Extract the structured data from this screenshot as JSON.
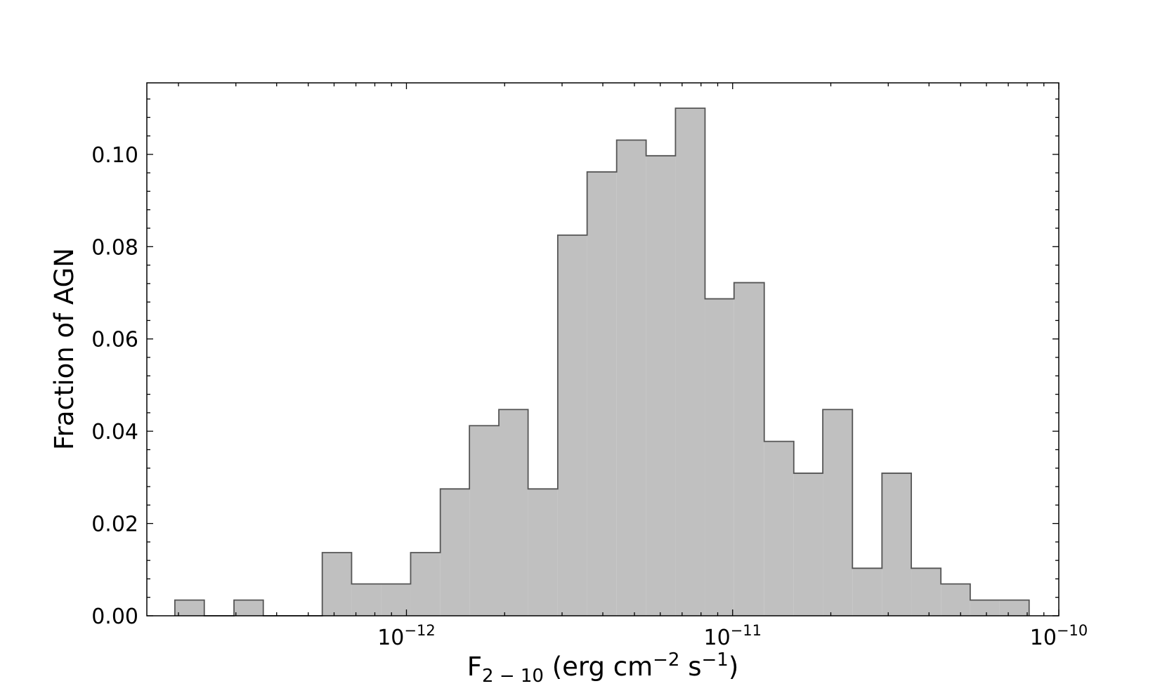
{
  "chart_data": {
    "type": "histogram",
    "x_scale": "log",
    "xlim": [
      1.6e-13,
      1e-10
    ],
    "ylim": [
      0,
      0.1155
    ],
    "bin_width_dex": 0.0909,
    "bins": [
      {
        "x0": 1.95e-13,
        "x1": 2.4e-13,
        "value": 0.0034
      },
      {
        "x0": 2.4e-13,
        "x1": 2.96e-13,
        "value": 0.0
      },
      {
        "x0": 2.96e-13,
        "x1": 3.64e-13,
        "value": 0.0034
      },
      {
        "x0": 3.64e-13,
        "x1": 4.48e-13,
        "value": 0.0
      },
      {
        "x0": 4.48e-13,
        "x1": 5.52e-13,
        "value": 0.0
      },
      {
        "x0": 5.52e-13,
        "x1": 6.79e-13,
        "value": 0.0137
      },
      {
        "x0": 6.79e-13,
        "x1": 8.36e-13,
        "value": 0.0069
      },
      {
        "x0": 8.36e-13,
        "x1": 1.03e-12,
        "value": 0.0069
      },
      {
        "x0": 1.03e-12,
        "x1": 1.27e-12,
        "value": 0.0137
      },
      {
        "x0": 1.27e-12,
        "x1": 1.56e-12,
        "value": 0.0275
      },
      {
        "x0": 1.56e-12,
        "x1": 1.92e-12,
        "value": 0.0412
      },
      {
        "x0": 1.92e-12,
        "x1": 2.36e-12,
        "value": 0.0447
      },
      {
        "x0": 2.36e-12,
        "x1": 2.91e-12,
        "value": 0.0275
      },
      {
        "x0": 2.91e-12,
        "x1": 3.58e-12,
        "value": 0.0825
      },
      {
        "x0": 3.58e-12,
        "x1": 4.41e-12,
        "value": 0.0962
      },
      {
        "x0": 4.41e-12,
        "x1": 5.43e-12,
        "value": 0.1031
      },
      {
        "x0": 5.43e-12,
        "x1": 6.68e-12,
        "value": 0.0997
      },
      {
        "x0": 6.68e-12,
        "x1": 8.23e-12,
        "value": 0.11
      },
      {
        "x0": 8.23e-12,
        "x1": 1.01e-11,
        "value": 0.0687
      },
      {
        "x0": 1.01e-11,
        "x1": 1.25e-11,
        "value": 0.0722
      },
      {
        "x0": 1.25e-11,
        "x1": 1.54e-11,
        "value": 0.0378
      },
      {
        "x0": 1.54e-11,
        "x1": 1.89e-11,
        "value": 0.0309
      },
      {
        "x0": 1.89e-11,
        "x1": 2.33e-11,
        "value": 0.0447
      },
      {
        "x0": 2.33e-11,
        "x1": 2.87e-11,
        "value": 0.0103
      },
      {
        "x0": 2.87e-11,
        "x1": 3.53e-11,
        "value": 0.0309
      },
      {
        "x0": 3.53e-11,
        "x1": 4.35e-11,
        "value": 0.0103
      },
      {
        "x0": 4.35e-11,
        "x1": 5.35e-11,
        "value": 0.0069
      },
      {
        "x0": 5.35e-11,
        "x1": 6.59e-11,
        "value": 0.0034
      },
      {
        "x0": 6.59e-11,
        "x1": 8.11e-11,
        "value": 0.0034
      }
    ],
    "x_ticks": [
      {
        "value": 1e-12,
        "base": "10",
        "exponent": "−12"
      },
      {
        "value": 1e-11,
        "base": "10",
        "exponent": "−11"
      },
      {
        "value": 1e-10,
        "base": "10",
        "exponent": "−10"
      }
    ],
    "y_ticks": [
      {
        "value": 0.0,
        "label": "0.00"
      },
      {
        "value": 0.02,
        "label": "0.02"
      },
      {
        "value": 0.04,
        "label": "0.04"
      },
      {
        "value": 0.06,
        "label": "0.06"
      },
      {
        "value": 0.08,
        "label": "0.08"
      },
      {
        "value": 0.1,
        "label": "0.10"
      }
    ],
    "ylabel": "Fraction of AGN",
    "xlabel": {
      "main": "F",
      "subscript": "2 − 10",
      "units_open": " (erg cm",
      "units_exp1": "−2",
      "units_mid": " s",
      "units_exp2": "−1",
      "units_close": ")"
    },
    "fill_color": "#c0c0c0",
    "edge_color": "#555555",
    "grid": false,
    "ticks_direction": "in"
  }
}
